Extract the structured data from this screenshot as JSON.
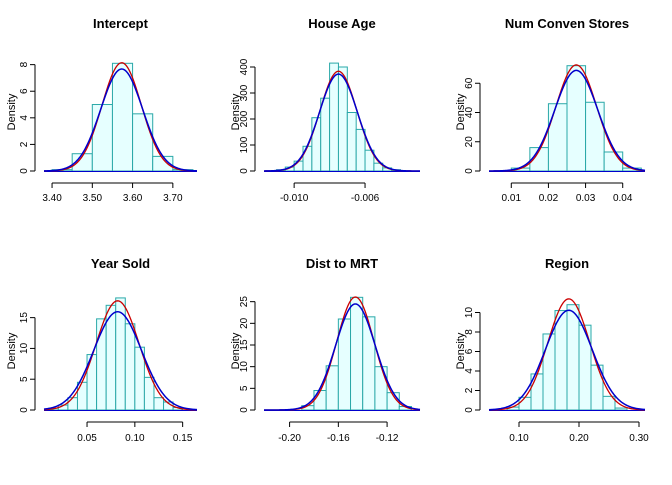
{
  "colors": {
    "hist_fill": "#e6ffff",
    "hist_border": "#2aa8a8",
    "normal_curve": "#0000cc",
    "density_curve": "#cc0000"
  },
  "chart_data": [
    {
      "type": "bar",
      "title": "Intercept",
      "ylabel": "Density",
      "xlim": [
        3.38,
        3.76
      ],
      "ylim": [
        0,
        8.8
      ],
      "xticks": [
        3.4,
        3.5,
        3.6,
        3.7
      ],
      "xticklabels": [
        "3.40",
        "3.50",
        "3.60",
        "3.70"
      ],
      "yticks": [
        0,
        2,
        4,
        6,
        8
      ],
      "bin_edges": [
        3.4,
        3.45,
        3.5,
        3.55,
        3.6,
        3.65,
        3.7,
        3.75
      ],
      "values": [
        0.1,
        1.3,
        5.0,
        8.1,
        4.3,
        1.1,
        0.1
      ],
      "normal": {
        "mean": 3.573,
        "sd": 0.052
      },
      "density": {
        "mean": 3.573,
        "sd": 0.049
      }
    },
    {
      "type": "bar",
      "title": "House Age",
      "ylabel": "Density",
      "xlim": [
        -0.0117,
        -0.0029
      ],
      "ylim": [
        0,
        450
      ],
      "xticks": [
        -0.01,
        -0.006
      ],
      "xticklabels": [
        "-0.010",
        "-0.006"
      ],
      "yticks": [
        0,
        100,
        200,
        300,
        400
      ],
      "bin_edges": [
        -0.011,
        -0.0105,
        -0.01,
        -0.0095,
        -0.009,
        -0.0085,
        -0.008,
        -0.0075,
        -0.007,
        -0.0065,
        -0.006,
        -0.0055,
        -0.005,
        -0.0045,
        -0.004
      ],
      "values": [
        5,
        15,
        38,
        95,
        205,
        280,
        415,
        400,
        225,
        160,
        80,
        30,
        12,
        5
      ],
      "normal": {
        "mean": -0.0075,
        "sd": 0.00107
      },
      "density": {
        "mean": -0.0075,
        "sd": 0.00104
      }
    },
    {
      "type": "bar",
      "title": "Num Conven Stores",
      "ylabel": "Density",
      "xlim": [
        0.004,
        0.046
      ],
      "ylim": [
        0,
        80
      ],
      "xticks": [
        0.01,
        0.02,
        0.03,
        0.04
      ],
      "xticklabels": [
        "0.01",
        "0.02",
        "0.03",
        "0.04"
      ],
      "yticks": [
        0,
        20,
        40,
        60
      ],
      "bin_edges": [
        0.01,
        0.015,
        0.02,
        0.025,
        0.03,
        0.035,
        0.04,
        0.045
      ],
      "values": [
        2,
        16,
        46,
        72,
        47,
        13,
        2
      ],
      "normal": {
        "mean": 0.0275,
        "sd": 0.0058
      },
      "density": {
        "mean": 0.0275,
        "sd": 0.0055
      }
    },
    {
      "type": "bar",
      "title": "Year Sold",
      "ylabel": "Density",
      "xlim": [
        0.005,
        0.165
      ],
      "ylim": [
        0,
        19
      ],
      "xticks": [
        0.05,
        0.1,
        0.15
      ],
      "xticklabels": [
        "0.05",
        "0.10",
        "0.15"
      ],
      "yticks": [
        0,
        5,
        10,
        15
      ],
      "bin_edges": [
        0.01,
        0.02,
        0.03,
        0.04,
        0.05,
        0.06,
        0.07,
        0.08,
        0.09,
        0.1,
        0.11,
        0.12,
        0.13,
        0.14,
        0.15
      ],
      "values": [
        0.3,
        0.8,
        2.0,
        4.5,
        9.0,
        14.8,
        17.0,
        18.2,
        14.0,
        10.2,
        5.3,
        2.0,
        1.3,
        0.4
      ],
      "normal": {
        "mean": 0.082,
        "sd": 0.025
      },
      "density": {
        "mean": 0.082,
        "sd": 0.0225
      }
    },
    {
      "type": "bar",
      "title": "Dist to MRT",
      "ylabel": "Density",
      "xlim": [
        -0.221,
        -0.093
      ],
      "ylim": [
        0,
        27
      ],
      "xticks": [
        -0.2,
        -0.16,
        -0.12
      ],
      "xticklabels": [
        "-0.20",
        "-0.16",
        "-0.12"
      ],
      "yticks": [
        0,
        5,
        10,
        15,
        20,
        25
      ],
      "bin_edges": [
        -0.19,
        -0.18,
        -0.17,
        -0.16,
        -0.15,
        -0.14,
        -0.13,
        -0.12,
        -0.11,
        -0.1
      ],
      "values": [
        1,
        4.5,
        10.2,
        21,
        26,
        21.5,
        10,
        4,
        0.8
      ],
      "normal": {
        "mean": -0.146,
        "sd": 0.0163
      },
      "density": {
        "mean": -0.146,
        "sd": 0.0153
      }
    },
    {
      "type": "bar",
      "title": "Region",
      "ylabel": "Density",
      "xlim": [
        0.05,
        0.31
      ],
      "ylim": [
        0,
        12
      ],
      "xticks": [
        0.1,
        0.2,
        0.3
      ],
      "xticklabels": [
        "0.10",
        "0.20",
        "0.30"
      ],
      "yticks": [
        0,
        2,
        4,
        6,
        8,
        10
      ],
      "bin_edges": [
        0.08,
        0.1,
        0.12,
        0.14,
        0.16,
        0.18,
        0.2,
        0.22,
        0.24,
        0.26,
        0.28
      ],
      "values": [
        0.3,
        1.3,
        3.7,
        7.8,
        10.2,
        10.8,
        8.7,
        4.6,
        1.4,
        0.2
      ],
      "normal": {
        "mean": 0.183,
        "sd": 0.039
      },
      "density": {
        "mean": 0.183,
        "sd": 0.035
      }
    }
  ]
}
